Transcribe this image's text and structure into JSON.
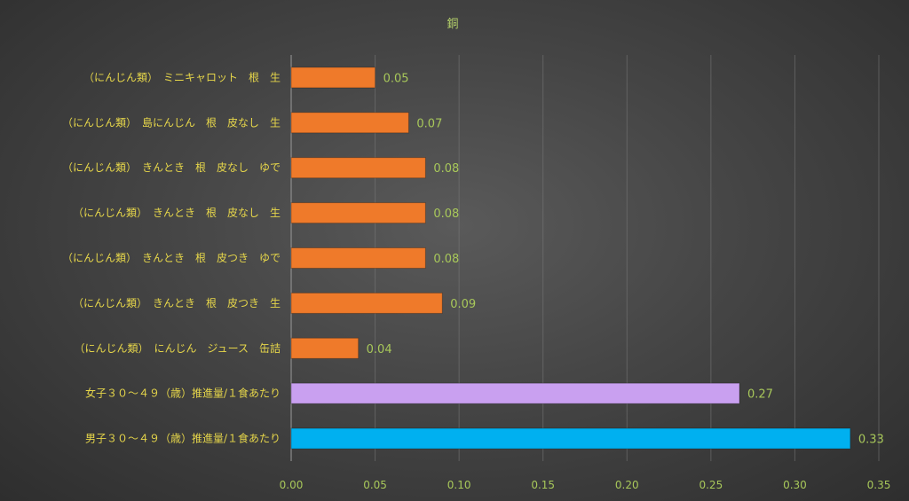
{
  "chart_data": {
    "type": "bar",
    "orientation": "horizontal",
    "title": "銅",
    "xlabel": "",
    "ylabel": "",
    "xlim": [
      0,
      0.35
    ],
    "xticks": [
      "0.00",
      "0.05",
      "0.10",
      "0.15",
      "0.20",
      "0.25",
      "0.30",
      "0.35"
    ],
    "grid": true,
    "legend": "none",
    "categories": [
      "（にんじん類）　ミニキャロット　根　生",
      "（にんじん類）　島にんじん　根　皮なし　生",
      "（にんじん類）　きんとき　根　皮なし　ゆで",
      "（にんじん類）　きんとき　根　皮なし　生",
      "（にんじん類）　きんとき　根　皮つき　ゆで",
      "（にんじん類）　きんとき　根　皮つき　生",
      "（にんじん類）　にんじん　ジュース　缶詰",
      "女子３０～４９（歳）推進量/１食あたり",
      "男子３０～４９（歳）推進量/１食あたり"
    ],
    "values": [
      0.05,
      0.07,
      0.08,
      0.08,
      0.08,
      0.09,
      0.04,
      0.267,
      0.333
    ],
    "data_labels": [
      "0.05",
      "0.07",
      "0.08",
      "0.08",
      "0.08",
      "0.09",
      "0.04",
      "0.27",
      "0.33"
    ],
    "bar_colors": [
      "#ef7a2a",
      "#ef7a2a",
      "#ef7a2a",
      "#ef7a2a",
      "#ef7a2a",
      "#ef7a2a",
      "#ef7a2a",
      "#c9a0f0",
      "#00b0f0"
    ]
  }
}
